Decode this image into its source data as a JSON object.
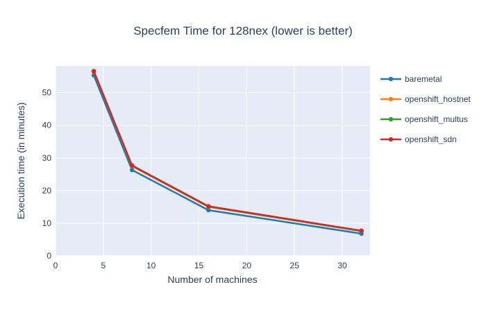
{
  "title": "Specfem Time for 128nex (lower is better)",
  "colors": {
    "text": "#2a3f5f",
    "plot_background": "#e5ecf6",
    "gridline": "#ffffff",
    "page_background": "#ffffff"
  },
  "chart_data": {
    "type": "line",
    "title": "Specfem Time for 128nex (lower is better)",
    "xlabel": "Number of machines",
    "ylabel": "Execution time (in minutes)",
    "x": [
      4,
      8,
      16,
      32
    ],
    "series": [
      {
        "name": "baremetal",
        "color": "#1f77b4",
        "values": [
          55.3,
          26.3,
          14.0,
          6.8
        ]
      },
      {
        "name": "openshift_hostnet",
        "color": "#ff7f0e",
        "values": [
          56.4,
          27.5,
          15.0,
          7.6
        ]
      },
      {
        "name": "openshift_multus",
        "color": "#2ca02c",
        "values": [
          56.5,
          27.6,
          15.1,
          7.6
        ]
      },
      {
        "name": "openshift_sdn",
        "color": "#d62728",
        "values": [
          56.6,
          27.7,
          15.2,
          7.7
        ]
      }
    ],
    "xticks": [
      0,
      5,
      10,
      15,
      20,
      25,
      30
    ],
    "yticks": [
      0,
      10,
      20,
      30,
      40,
      50
    ],
    "xlim": [
      0,
      32.9
    ],
    "ylim": [
      0,
      58.2
    ],
    "grid": true,
    "legend_position": "right",
    "marker": "circle"
  }
}
